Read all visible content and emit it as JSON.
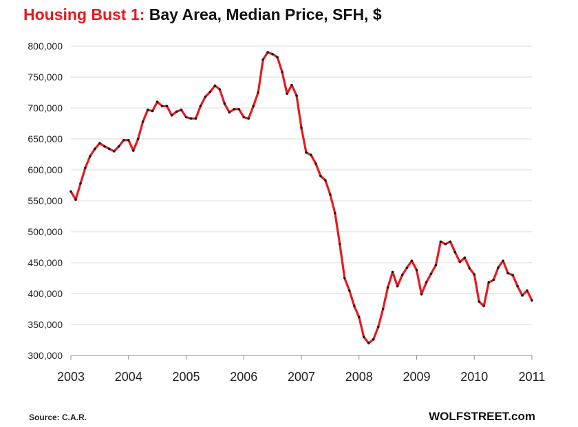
{
  "title": {
    "lead": "Housing  Bust 1:",
    "rest": " Bay Area, Median Price, SFH, $"
  },
  "footer": {
    "source": "Source: C.A.R.",
    "brand": "WOLFSTREET.com"
  },
  "colors": {
    "line": "#e8191e",
    "marker": "#1a1a1a",
    "grid": "#d9d9d9",
    "title_accent": "#e8191e"
  },
  "chart_data": {
    "type": "line",
    "title": "Housing  Bust 1: Bay Area, Median Price, SFH, $",
    "xlabel": "",
    "ylabel": "",
    "xlim": [
      2003,
      2011
    ],
    "ylim": [
      300000,
      800000
    ],
    "y_ticks": [
      "300,000",
      "350,000",
      "400,000",
      "450,000",
      "500,000",
      "550,000",
      "600,000",
      "650,000",
      "700,000",
      "750,000",
      "800,000"
    ],
    "x_ticks": [
      "2003",
      "2004",
      "2005",
      "2006",
      "2007",
      "2008",
      "2009",
      "2010",
      "2011"
    ],
    "grid": "horizontal",
    "legend": "none",
    "markers": "small black dots",
    "series": [
      {
        "values": [
          565000,
          552000,
          578000,
          603000,
          622000,
          634000,
          643000,
          638000,
          634000,
          630000,
          638000,
          648000,
          648000,
          631000,
          650000,
          678000,
          697000,
          695000,
          710000,
          703000,
          703000,
          688000,
          694000,
          697000,
          685000,
          683000,
          683000,
          703000,
          718000,
          726000,
          736000,
          730000,
          707000,
          693000,
          698000,
          698000,
          685000,
          683000,
          703000,
          725000,
          778000,
          790000,
          787000,
          782000,
          758000,
          723000,
          737000,
          720000,
          668000,
          628000,
          624000,
          610000,
          590000,
          583000,
          560000,
          530000,
          480000,
          425000,
          405000,
          380000,
          362000,
          330000,
          320000,
          326000,
          346000,
          375000,
          410000,
          435000,
          412000,
          430000,
          442000,
          453000,
          438000,
          399000,
          418000,
          432000,
          446000,
          484000,
          480000,
          484000,
          467000,
          451000,
          458000,
          441000,
          431000,
          387000,
          380000,
          418000,
          422000,
          442000,
          453000,
          433000,
          430000,
          412000,
          397000,
          405000,
          389000
        ]
      }
    ]
  }
}
